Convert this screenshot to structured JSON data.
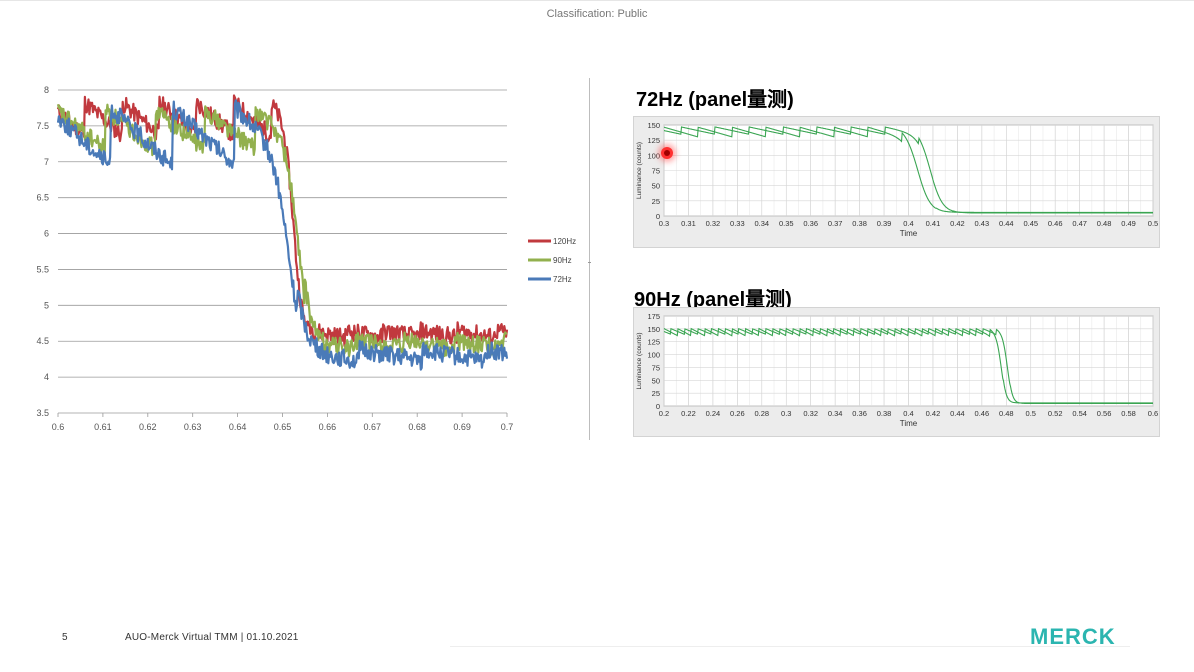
{
  "header": {
    "classification": "Classification: Public"
  },
  "footer": {
    "page_number": "5",
    "text": "AUO-Merck Virtual TMM | 01.10.2021",
    "logo_text": "MERCK"
  },
  "colors": {
    "c120": "#c1393e",
    "c90": "#92b04e",
    "c72": "#4a7ab8",
    "panel_curve": "#3aa552",
    "logo": "#2bb5b0"
  },
  "panels": [
    {
      "title": "72Hz (panel量测)",
      "xlabel": "Time",
      "ylabel": "Luminance (counts)"
    },
    {
      "title": "90Hz (panel量测)",
      "xlabel": "Time",
      "ylabel": "Luminance (counts)"
    }
  ],
  "chart_data": [
    {
      "type": "line",
      "title": "",
      "xlabel": "",
      "ylabel": "",
      "xlim": [
        0.6,
        0.7
      ],
      "ylim": [
        3.5,
        8
      ],
      "x_ticks": [
        "0.6",
        "0.61",
        "0.62",
        "0.63",
        "0.64",
        "0.65",
        "0.66",
        "0.67",
        "0.68",
        "0.69",
        "0.7"
      ],
      "y_ticks": [
        "3.5",
        "4",
        "4.5",
        "5",
        "5.5",
        "6",
        "6.5",
        "7",
        "7.5",
        "8"
      ],
      "legend_position": "right",
      "series": [
        {
          "name": "120Hz",
          "color": "#c1393e",
          "high": 7.6,
          "low": 4.6,
          "transition": 0.6525,
          "period": 0.0083,
          "amp": 0.45
        },
        {
          "name": "90Hz",
          "color": "#92b04e",
          "high": 7.45,
          "low": 4.45,
          "transition": 0.6535,
          "period": 0.0111,
          "amp": 0.55
        },
        {
          "name": "72Hz",
          "color": "#4a7ab8",
          "high": 7.35,
          "low": 4.3,
          "transition": 0.6515,
          "period": 0.0139,
          "amp": 0.8
        }
      ]
    },
    {
      "type": "line",
      "title": "72Hz (panel量测)",
      "xlabel": "Time",
      "ylabel": "Luminance (counts)",
      "xlim": [
        0.3,
        0.5
      ],
      "ylim": [
        0,
        150
      ],
      "x_ticks": [
        "0.3",
        "0.31",
        "0.32",
        "0.33",
        "0.34",
        "0.35",
        "0.36",
        "0.37",
        "0.38",
        "0.39",
        "0.4",
        "0.41",
        "0.42",
        "0.43",
        "0.44",
        "0.45",
        "0.46",
        "0.47",
        "0.48",
        "0.49",
        "0.5"
      ],
      "y_ticks": [
        "0",
        "25",
        "50",
        "75",
        "100",
        "125",
        "150"
      ],
      "series": [
        {
          "name": "",
          "high": 140,
          "low": 6,
          "transition": 0.404,
          "period": 0.0139,
          "amp": 16
        },
        {
          "name": "",
          "high": 142,
          "low": 5,
          "transition": 0.409,
          "period": 0.0139,
          "amp": 12
        }
      ]
    },
    {
      "type": "line",
      "title": "90Hz (panel量测)",
      "xlabel": "Time",
      "ylabel": "Luminance (counts)",
      "xlim": [
        0.2,
        0.6
      ],
      "ylim": [
        0,
        175
      ],
      "x_ticks": [
        "0.2",
        "0.22",
        "0.24",
        "0.26",
        "0.28",
        "0.3",
        "0.32",
        "0.34",
        "0.36",
        "0.38",
        "0.4",
        "0.42",
        "0.44",
        "0.46",
        "0.48",
        "0.5",
        "0.52",
        "0.54",
        "0.56",
        "0.58",
        "0.6"
      ],
      "y_ticks": [
        "0",
        "25",
        "50",
        "75",
        "100",
        "125",
        "150",
        "175"
      ],
      "series": [
        {
          "name": "",
          "high": 145,
          "low": 6,
          "transition": 0.476,
          "period": 0.0111,
          "amp": 14
        },
        {
          "name": "",
          "high": 146,
          "low": 5,
          "transition": 0.481,
          "period": 0.0111,
          "amp": 11
        }
      ]
    }
  ]
}
